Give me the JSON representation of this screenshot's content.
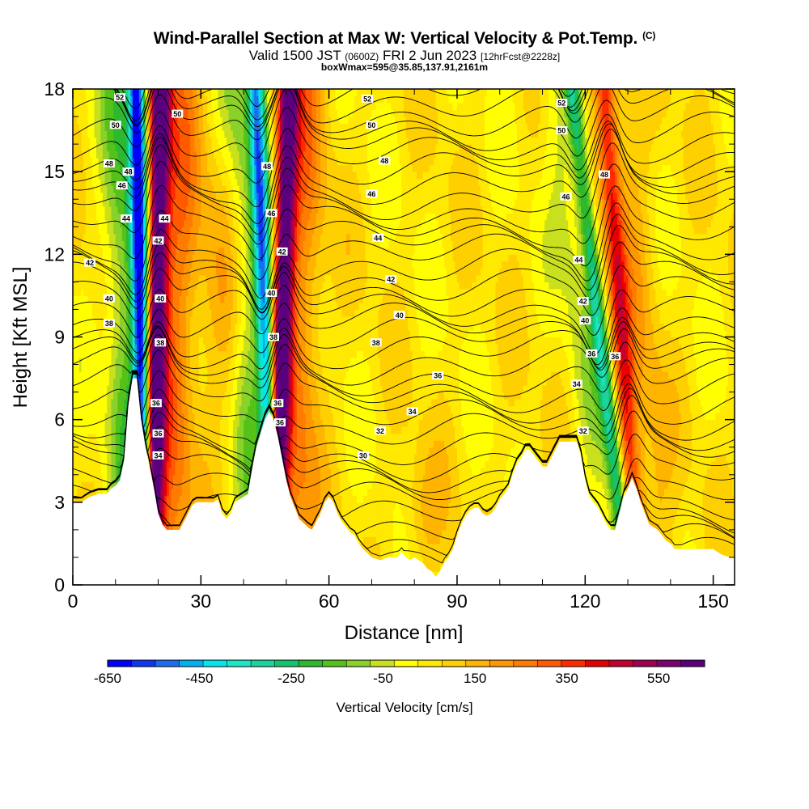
{
  "header": {
    "title": "Wind-Parallel Section at Max W: Vertical Velocity & Pot.Temp.",
    "copyright": "(C)",
    "valid_prefix": "Valid 1500 JST",
    "valid_utc": "(0600Z)",
    "valid_date": "FRI 2 Jun 2023",
    "forecast": "[12hrFcst@2228z]",
    "box_info": "boxWmax=595@35.85,137.91,2161m"
  },
  "colorbar": {
    "label": "Vertical Velocity [cm/s]",
    "tick_labels": [
      "-650",
      "-450",
      "-250",
      "-50",
      "150",
      "350",
      "550"
    ],
    "colors": [
      "#0000ff",
      "#0f36f2",
      "#1d6cee",
      "#00b0f0",
      "#00e8ee",
      "#1be6c8",
      "#1bd49c",
      "#14c36e",
      "#2eb82e",
      "#55c21a",
      "#8ad12a",
      "#c8e01e",
      "#ffff00",
      "#ffe900",
      "#ffd000",
      "#ffb400",
      "#ff9800",
      "#ff7c00",
      "#ff5a00",
      "#ff2a00",
      "#e60000",
      "#c30030",
      "#a00050",
      "#7d0070",
      "#5a007d"
    ]
  },
  "chart_data": {
    "type": "heatmap",
    "title": "Wind-Parallel Section at Max W: Vertical Velocity & Pot.Temp.",
    "xlabel": "Distance [nm]",
    "ylabel": "Height [Kft MSL]",
    "xlim": [
      0,
      155
    ],
    "ylim": [
      0,
      18
    ],
    "x_ticks": [
      "0",
      "30",
      "60",
      "90",
      "120",
      "150"
    ],
    "y_ticks": [
      "0",
      "3",
      "6",
      "9",
      "12",
      "15",
      "18"
    ],
    "grid": false,
    "colorbar_range": [
      -650,
      650
    ],
    "colorbar_step": 50,
    "terrain_profile": [
      [
        0,
        3.0
      ],
      [
        2,
        3.0
      ],
      [
        4,
        3.2
      ],
      [
        6,
        3.3
      ],
      [
        8,
        3.3
      ],
      [
        9,
        3.5
      ],
      [
        10,
        3.6
      ],
      [
        11,
        3.8
      ],
      [
        12,
        4.5
      ],
      [
        13,
        6.5
      ],
      [
        14,
        7.5
      ],
      [
        15,
        7.5
      ],
      [
        16,
        6.0
      ],
      [
        17,
        5.0
      ],
      [
        18,
        4.3
      ],
      [
        19,
        3.5
      ],
      [
        20,
        2.6
      ],
      [
        21,
        2.2
      ],
      [
        22,
        2.0
      ],
      [
        25,
        2.0
      ],
      [
        26,
        2.3
      ],
      [
        27,
        2.6
      ],
      [
        28,
        2.9
      ],
      [
        29,
        3.0
      ],
      [
        33,
        3.0
      ],
      [
        34,
        3.1
      ],
      [
        35,
        2.6
      ],
      [
        36,
        2.4
      ],
      [
        37,
        2.6
      ],
      [
        38,
        3.0
      ],
      [
        40,
        3.2
      ],
      [
        41,
        3.3
      ],
      [
        42,
        4.2
      ],
      [
        43,
        5.0
      ],
      [
        44,
        5.5
      ],
      [
        45,
        6.0
      ],
      [
        46,
        6.3
      ],
      [
        47,
        6.0
      ],
      [
        48,
        5.4
      ],
      [
        49,
        4.6
      ],
      [
        50,
        3.8
      ],
      [
        51,
        3.2
      ],
      [
        52,
        2.8
      ],
      [
        53,
        2.4
      ],
      [
        55,
        2.1
      ],
      [
        56,
        2.0
      ],
      [
        57,
        2.3
      ],
      [
        58,
        2.6
      ],
      [
        59,
        3.0
      ],
      [
        60,
        3.2
      ],
      [
        61,
        3.0
      ],
      [
        62,
        2.6
      ],
      [
        63,
        2.3
      ],
      [
        64,
        2.1
      ],
      [
        65,
        1.9
      ],
      [
        66,
        1.8
      ],
      [
        67,
        1.5
      ],
      [
        68,
        1.3
      ],
      [
        70,
        1.0
      ],
      [
        72,
        0.9
      ],
      [
        74,
        1.0
      ],
      [
        76,
        1.0
      ],
      [
        77,
        1.2
      ],
      [
        78,
        1.0
      ],
      [
        79,
        0.9
      ],
      [
        80,
        1.0
      ],
      [
        81,
        0.9
      ],
      [
        82,
        0.8
      ],
      [
        83,
        0.6
      ],
      [
        84,
        0.5
      ],
      [
        85,
        0.3
      ],
      [
        86,
        0.5
      ],
      [
        87,
        0.8
      ],
      [
        88,
        1.0
      ],
      [
        89,
        1.3
      ],
      [
        90,
        1.8
      ],
      [
        91,
        2.2
      ],
      [
        92,
        2.5
      ],
      [
        93,
        2.7
      ],
      [
        94,
        2.8
      ],
      [
        95,
        2.8
      ],
      [
        96,
        2.6
      ],
      [
        97,
        2.5
      ],
      [
        98,
        2.6
      ],
      [
        99,
        2.8
      ],
      [
        100,
        3.1
      ],
      [
        101,
        3.3
      ],
      [
        102,
        3.5
      ],
      [
        103,
        4.0
      ],
      [
        104,
        4.4
      ],
      [
        105,
        4.6
      ],
      [
        106,
        4.9
      ],
      [
        107,
        4.9
      ],
      [
        108,
        4.7
      ],
      [
        109,
        4.5
      ],
      [
        110,
        4.3
      ],
      [
        111,
        4.3
      ],
      [
        112,
        4.6
      ],
      [
        113,
        4.9
      ],
      [
        114,
        5.2
      ],
      [
        118,
        5.2
      ],
      [
        119,
        4.7
      ],
      [
        120,
        3.8
      ],
      [
        121,
        3.2
      ],
      [
        122,
        3.0
      ],
      [
        123,
        2.8
      ],
      [
        124,
        2.5
      ],
      [
        125,
        2.2
      ],
      [
        126,
        2.0
      ],
      [
        127,
        2.0
      ],
      [
        128,
        2.6
      ],
      [
        129,
        3.2
      ],
      [
        130,
        3.5
      ],
      [
        131,
        3.9
      ],
      [
        132,
        3.5
      ],
      [
        133,
        3.0
      ],
      [
        134,
        2.6
      ],
      [
        135,
        2.2
      ],
      [
        136,
        2.1
      ],
      [
        137,
        2.0
      ],
      [
        138,
        1.8
      ],
      [
        139,
        1.6
      ],
      [
        140,
        1.5
      ],
      [
        141,
        1.3
      ],
      [
        142,
        1.3
      ],
      [
        148,
        1.3
      ],
      [
        150,
        1.3
      ],
      [
        152,
        1.1
      ],
      [
        154,
        1.0
      ],
      [
        155,
        1.0
      ]
    ],
    "updraft_axes": [
      {
        "x_top": 20.5,
        "x_bottom": 18.5,
        "w_max": 595
      },
      {
        "x_top": 50.5,
        "x_bottom": 47.5,
        "w_max": 540
      },
      {
        "x_top": 124.5,
        "x_bottom": 132.5,
        "w_max": 300
      }
    ],
    "downdraft_axes": [
      {
        "x_top": 15.0,
        "x_bottom": 17.0,
        "w_min": -650
      },
      {
        "x_top": 43.0,
        "x_bottom": 47.0,
        "w_min": -500
      },
      {
        "x_top": 117.0,
        "x_bottom": 130.0,
        "w_min": -300
      }
    ],
    "theta_contour_labels": [
      {
        "label": "52",
        "x": 11,
        "y": 17.7
      },
      {
        "label": "52",
        "x": 69,
        "y": 17.65
      },
      {
        "label": "52",
        "x": 114.5,
        "y": 17.5
      },
      {
        "label": "50",
        "x": 10,
        "y": 16.7
      },
      {
        "label": "50",
        "x": 24.5,
        "y": 17.1
      },
      {
        "label": "50",
        "x": 70,
        "y": 16.7
      },
      {
        "label": "50",
        "x": 114.5,
        "y": 16.5
      },
      {
        "label": "48",
        "x": 8.5,
        "y": 15.3
      },
      {
        "label": "48",
        "x": 13,
        "y": 15.0
      },
      {
        "label": "48",
        "x": 45.5,
        "y": 15.2
      },
      {
        "label": "48",
        "x": 73,
        "y": 15.4
      },
      {
        "label": "48",
        "x": 124.5,
        "y": 14.9
      },
      {
        "label": "46",
        "x": 11.5,
        "y": 14.5
      },
      {
        "label": "46",
        "x": 70,
        "y": 14.2
      },
      {
        "label": "46",
        "x": 115.5,
        "y": 14.1
      },
      {
        "label": "46",
        "x": 46.5,
        "y": 13.5
      },
      {
        "label": "44",
        "x": 12.5,
        "y": 13.3
      },
      {
        "label": "44",
        "x": 21.5,
        "y": 13.3
      },
      {
        "label": "44",
        "x": 71.5,
        "y": 12.6
      },
      {
        "label": "44",
        "x": 118.5,
        "y": 11.8
      },
      {
        "label": "42",
        "x": 4,
        "y": 11.7
      },
      {
        "label": "42",
        "x": 20,
        "y": 12.5
      },
      {
        "label": "42",
        "x": 49,
        "y": 12.1
      },
      {
        "label": "42",
        "x": 74.5,
        "y": 11.1
      },
      {
        "label": "42",
        "x": 119.5,
        "y": 10.3
      },
      {
        "label": "40",
        "x": 8.5,
        "y": 10.4
      },
      {
        "label": "40",
        "x": 20.5,
        "y": 10.4
      },
      {
        "label": "40",
        "x": 46.5,
        "y": 10.6
      },
      {
        "label": "40",
        "x": 76.5,
        "y": 9.8
      },
      {
        "label": "40",
        "x": 120,
        "y": 9.6
      },
      {
        "label": "38",
        "x": 8.5,
        "y": 9.5
      },
      {
        "label": "38",
        "x": 20.5,
        "y": 8.8
      },
      {
        "label": "38",
        "x": 47,
        "y": 9.0
      },
      {
        "label": "38",
        "x": 71,
        "y": 8.8
      },
      {
        "label": "36",
        "x": 85.5,
        "y": 7.6
      },
      {
        "label": "36",
        "x": 121.5,
        "y": 8.4
      },
      {
        "label": "36",
        "x": 127,
        "y": 8.3
      },
      {
        "label": "36",
        "x": 19.5,
        "y": 6.6
      },
      {
        "label": "36",
        "x": 48,
        "y": 6.6
      },
      {
        "label": "36",
        "x": 48.5,
        "y": 5.9
      },
      {
        "label": "36",
        "x": 20,
        "y": 5.5
      },
      {
        "label": "34",
        "x": 79.5,
        "y": 6.3
      },
      {
        "label": "34",
        "x": 118,
        "y": 7.3
      },
      {
        "label": "34",
        "x": 20,
        "y": 4.7
      },
      {
        "label": "32",
        "x": 72,
        "y": 5.6
      },
      {
        "label": "32",
        "x": 119.5,
        "y": 5.6
      },
      {
        "label": "30",
        "x": 68,
        "y": 4.7
      }
    ]
  }
}
